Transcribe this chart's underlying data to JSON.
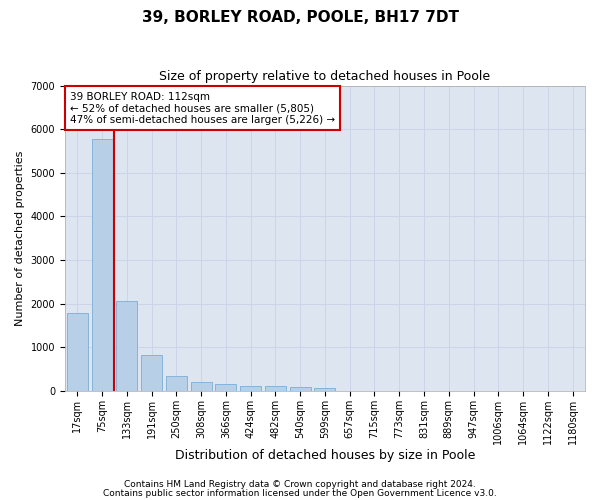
{
  "title_line1": "39, BORLEY ROAD, POOLE, BH17 7DT",
  "title_line2": "Size of property relative to detached houses in Poole",
  "xlabel": "Distribution of detached houses by size in Poole",
  "ylabel": "Number of detached properties",
  "categories": [
    "17sqm",
    "75sqm",
    "133sqm",
    "191sqm",
    "250sqm",
    "308sqm",
    "366sqm",
    "424sqm",
    "482sqm",
    "540sqm",
    "599sqm",
    "657sqm",
    "715sqm",
    "773sqm",
    "831sqm",
    "889sqm",
    "947sqm",
    "1006sqm",
    "1064sqm",
    "1122sqm",
    "1180sqm"
  ],
  "values": [
    1780,
    5780,
    2060,
    820,
    340,
    195,
    155,
    115,
    100,
    95,
    75,
    0,
    0,
    0,
    0,
    0,
    0,
    0,
    0,
    0,
    0
  ],
  "bar_color": "#b8cfe8",
  "bar_edge_color": "#7aadd4",
  "vline_color": "#cc0000",
  "annotation_text": "39 BORLEY ROAD: 112sqm\n← 52% of detached houses are smaller (5,805)\n47% of semi-detached houses are larger (5,226) →",
  "annotation_box_color": "#ffffff",
  "annotation_box_edge": "#cc0000",
  "ylim": [
    0,
    7000
  ],
  "yticks": [
    0,
    1000,
    2000,
    3000,
    4000,
    5000,
    6000,
    7000
  ],
  "grid_color": "#ccd5e8",
  "background_color": "#dde5f0",
  "footer_line1": "Contains HM Land Registry data © Crown copyright and database right 2024.",
  "footer_line2": "Contains public sector information licensed under the Open Government Licence v3.0.",
  "title_fontsize": 11,
  "subtitle_fontsize": 9,
  "xlabel_fontsize": 9,
  "ylabel_fontsize": 8,
  "tick_fontsize": 7,
  "footer_fontsize": 6.5,
  "annot_fontsize": 7.5
}
